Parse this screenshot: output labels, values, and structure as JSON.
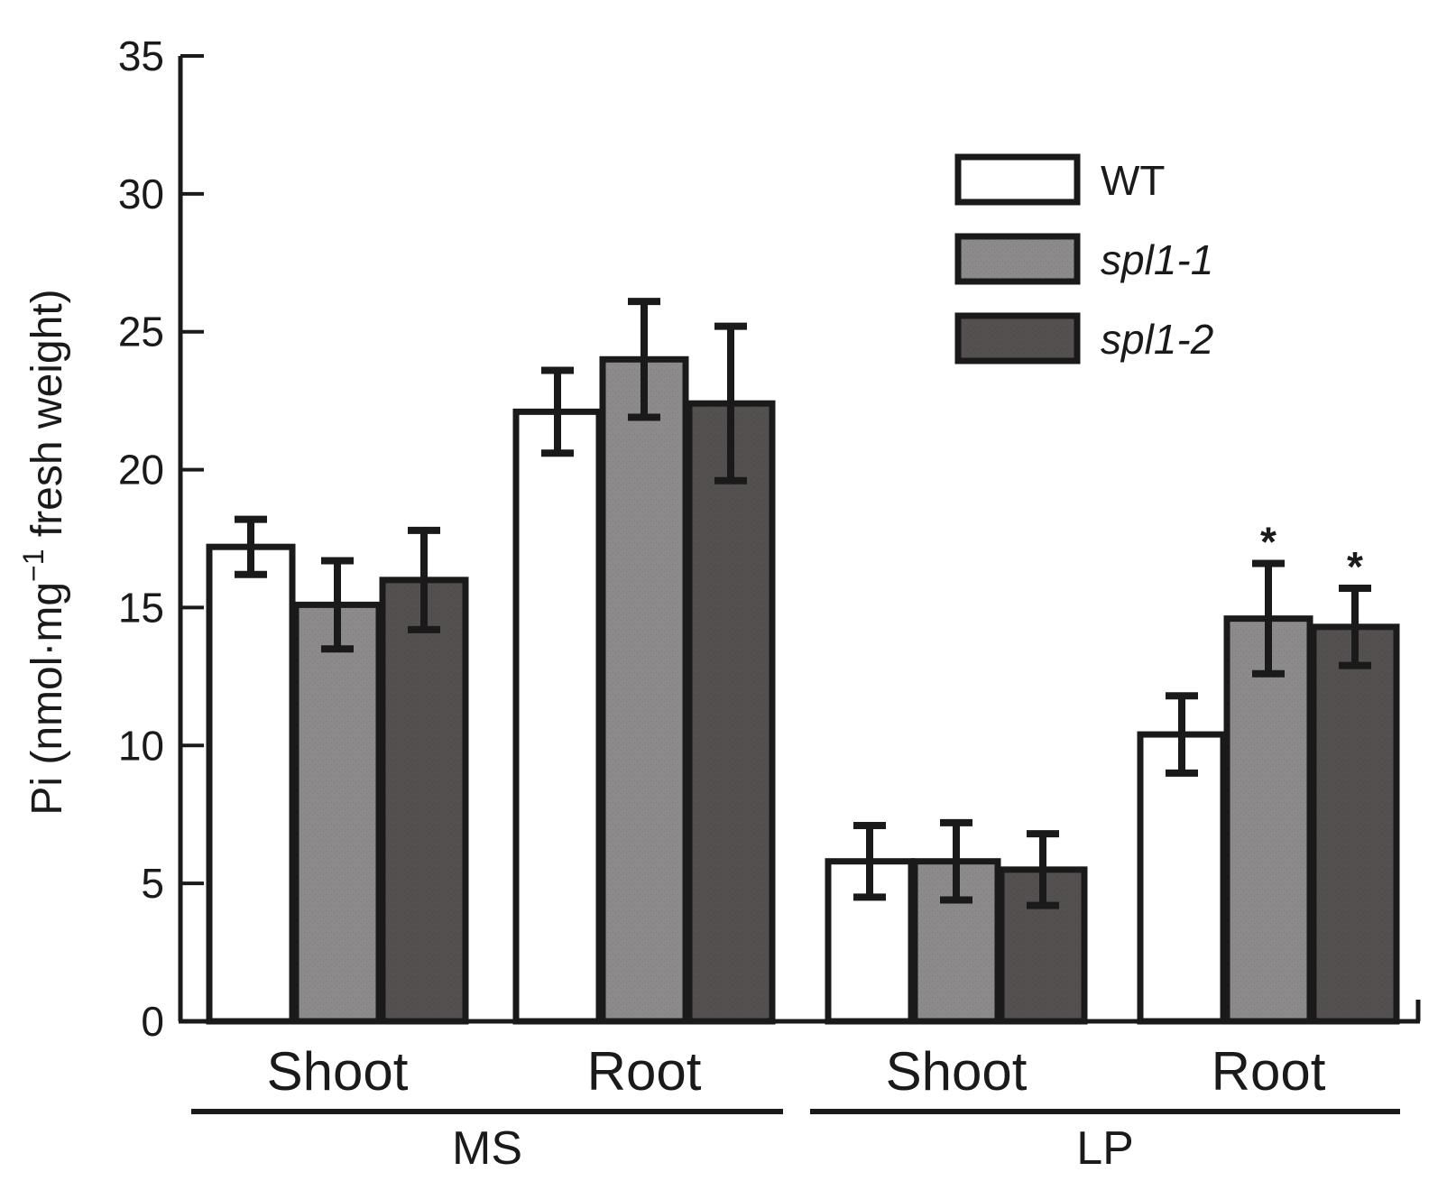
{
  "chart_data": {
    "type": "bar",
    "ylabel": "Pi (nmol·mg⁻¹ fresh weight)",
    "ylabel_parts": {
      "main": "Pi (nmol·mg",
      "sup": "−1",
      "rest": " fresh weight)"
    },
    "ylim": [
      0,
      35
    ],
    "yticks": [
      0,
      5,
      10,
      15,
      20,
      25,
      30,
      35
    ],
    "ytick_labels": [
      "0",
      "5",
      "10",
      "15",
      "20",
      "25",
      "30",
      "35"
    ],
    "groups": [
      {
        "name": "MS",
        "categories": [
          "Shoot",
          "Root"
        ]
      },
      {
        "name": "LP",
        "categories": [
          "Shoot",
          "Root"
        ]
      }
    ],
    "categories": [
      "Shoot",
      "Root",
      "Shoot",
      "Root"
    ],
    "series": [
      {
        "name": "WT",
        "color": "#ffffff",
        "values": [
          17.2,
          22.1,
          5.8,
          10.4
        ],
        "errors": [
          1.0,
          1.5,
          1.3,
          1.4
        ]
      },
      {
        "name": "spl1-1",
        "color": "#8c8a8a",
        "values": [
          15.1,
          24.0,
          5.8,
          14.6
        ],
        "errors": [
          1.6,
          2.1,
          1.4,
          2.0
        ]
      },
      {
        "name": "spl1-2",
        "color": "#545050",
        "values": [
          16.0,
          22.4,
          5.5,
          14.3
        ],
        "errors": [
          1.8,
          2.8,
          1.3,
          1.4
        ]
      }
    ],
    "annotations": [
      {
        "text": "*",
        "category_index": 3,
        "series_index": 1
      },
      {
        "text": "*",
        "category_index": 3,
        "series_index": 2
      }
    ],
    "legend": {
      "position": "top-right",
      "italic_series": [
        "spl1-1",
        "spl1-2"
      ]
    },
    "grid": false
  }
}
